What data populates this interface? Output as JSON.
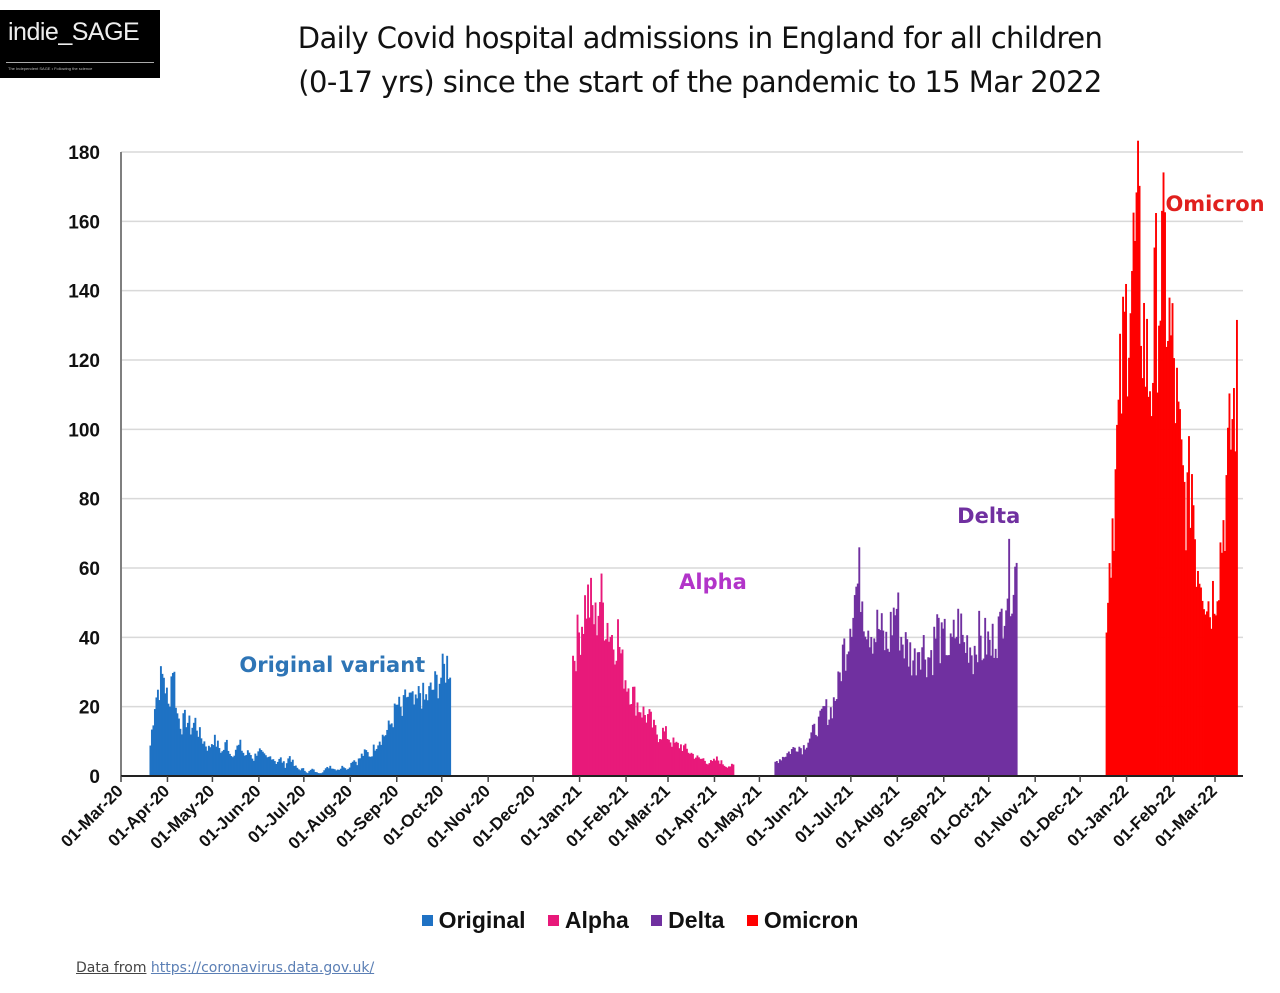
{
  "logo": {
    "name": "indie_SAGE",
    "tagline": "The Independent SAGE • Following the science"
  },
  "title_line1": "Daily Covid hospital admissions in England for all children",
  "title_line2": "(0-17 yrs) since the start of the pandemic to 15 Mar 2022",
  "source": {
    "label": "Data from",
    "url": "https://coronavirus.data.gov.uk/"
  },
  "colors": {
    "Original": "#1f72c4",
    "Alpha": "#e8197a",
    "Delta": "#7030a0",
    "Omicron": "#ff0000",
    "annotation_original": "#2e75b6",
    "annotation_alpha": "#b234c9",
    "annotation_delta": "#7030a0",
    "annotation_omicron": "#e0201e"
  },
  "chart_data": {
    "type": "bar",
    "title": "Daily Covid hospital admissions in England for all children (0-17 yrs) since the start of the pandemic to 15 Mar 2022",
    "xlabel": "",
    "ylabel": "",
    "ylim": [
      0,
      180
    ],
    "yticks": [
      0,
      20,
      40,
      60,
      80,
      100,
      120,
      140,
      160,
      180
    ],
    "grid": true,
    "legend_position": "bottom-center",
    "x_range": [
      "2020-03-01",
      "2022-03-15"
    ],
    "xtick_labels": [
      "01-Mar-20",
      "01-Apr-20",
      "01-May-20",
      "01-Jun-20",
      "01-Jul-20",
      "01-Aug-20",
      "01-Sep-20",
      "01-Oct-20",
      "01-Nov-20",
      "01-Dec-20",
      "01-Jan-21",
      "01-Feb-21",
      "01-Mar-21",
      "01-Apr-21",
      "01-May-21",
      "01-Jun-21",
      "01-Jul-21",
      "01-Aug-21",
      "01-Sep-21",
      "01-Oct-21",
      "01-Nov-21",
      "01-Dec-21",
      "01-Jan-22",
      "01-Feb-22",
      "01-Mar-22"
    ],
    "legend": [
      "Original",
      "Alpha",
      "Delta",
      "Omicron"
    ],
    "annotations": [
      {
        "text": "Original variant",
        "series": "Original",
        "x_date": "2020-07-20",
        "y": 30
      },
      {
        "text": "Alpha",
        "series": "Alpha",
        "x_date": "2021-03-31",
        "y": 54
      },
      {
        "text": "Delta",
        "series": "Delta",
        "x_date": "2021-10-01",
        "y": 73
      },
      {
        "text": "Omicron",
        "series": "Omicron",
        "x_date": "2022-03-01",
        "y": 163
      }
    ],
    "sample_interval_days": 3,
    "series": [
      {
        "name": "Original",
        "start": "2020-03-20",
        "values": [
          9,
          22,
          27,
          30,
          20,
          34,
          18,
          15,
          17,
          14,
          16,
          12,
          10,
          8,
          11,
          9,
          7,
          10,
          6,
          8,
          9,
          6,
          7,
          5,
          8,
          6,
          5,
          6,
          4,
          5,
          3,
          6,
          3,
          2,
          2,
          1,
          2,
          1,
          1,
          2,
          3,
          2,
          2,
          3,
          2,
          5,
          4,
          6,
          7,
          6,
          9,
          11,
          12,
          14,
          17,
          21,
          18,
          24,
          22,
          20,
          25,
          22,
          24,
          26,
          28,
          30,
          33
        ]
      },
      {
        "name": "Alpha",
        "start": "2020-12-27",
        "values": [
          35,
          40,
          46,
          52,
          50,
          45,
          53,
          48,
          44,
          40,
          42,
          32,
          28,
          25,
          22,
          20,
          18,
          17,
          14,
          12,
          13,
          12,
          10,
          9,
          9,
          8,
          7,
          6,
          5,
          5,
          4,
          4,
          5,
          4,
          3,
          3
        ]
      },
      {
        "name": "Delta",
        "start": "2021-05-11",
        "values": [
          4,
          5,
          6,
          7,
          8,
          9,
          8,
          10,
          12,
          14,
          16,
          20,
          18,
          22,
          26,
          36,
          40,
          50,
          55,
          58,
          48,
          45,
          42,
          44,
          40,
          38,
          46,
          50,
          41,
          38,
          36,
          34,
          40,
          38,
          35,
          37,
          44,
          38,
          40,
          36,
          42,
          45,
          38,
          40,
          36,
          42,
          38,
          40,
          37,
          44,
          42,
          55,
          58,
          60
        ]
      },
      {
        "name": "Omicron",
        "start": "2021-12-18",
        "values": [
          50,
          70,
          88,
          110,
          128,
          145,
          150,
          157,
          135,
          120,
          118,
          140,
          145,
          150,
          130,
          120,
          100,
          85,
          80,
          90,
          65,
          62,
          55,
          50,
          55,
          62,
          75,
          90,
          105,
          115
        ]
      }
    ]
  }
}
